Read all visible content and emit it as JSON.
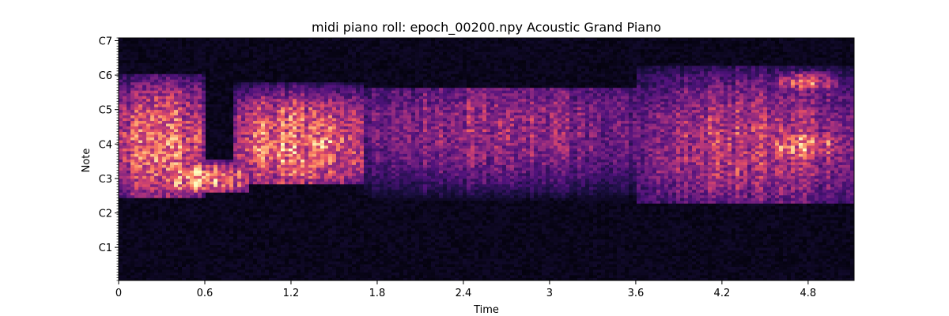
{
  "chart_data": {
    "type": "heatmap",
    "title": "midi piano roll: epoch_00200.npy Acoustic Grand Piano",
    "xlabel": "Time",
    "ylabel": "Note",
    "xlim": [
      0,
      5.12
    ],
    "ylim": [
      0,
      88
    ],
    "colormap": "magma",
    "x_ticks": [
      {
        "value": 0,
        "label": "0"
      },
      {
        "value": 0.6,
        "label": "0.6"
      },
      {
        "value": 1.2,
        "label": "1.2"
      },
      {
        "value": 1.8,
        "label": "1.8"
      },
      {
        "value": 2.4,
        "label": "2.4"
      },
      {
        "value": 3.0,
        "label": "3"
      },
      {
        "value": 3.6,
        "label": "3.6"
      },
      {
        "value": 4.2,
        "label": "4.2"
      },
      {
        "value": 4.8,
        "label": "4.8"
      }
    ],
    "y_ticks": [
      {
        "value": 12,
        "label": "C1"
      },
      {
        "value": 24.5,
        "label": "C2"
      },
      {
        "value": 37,
        "label": "C3"
      },
      {
        "value": 49.5,
        "label": "C4"
      },
      {
        "value": 62,
        "label": "C5"
      },
      {
        "value": 74.5,
        "label": "C6"
      },
      {
        "value": 87,
        "label": "C7"
      }
    ],
    "minor_y_ticks_per_note": true,
    "intensity_bands": [
      {
        "t_start": 0.0,
        "t_end": 0.6,
        "note_low": 30,
        "note_high": 75,
        "peak_note": 50,
        "level": 0.85
      },
      {
        "t_start": 0.3,
        "t_end": 0.9,
        "note_low": 32,
        "note_high": 44,
        "peak_note": 37,
        "level": 1.0
      },
      {
        "t_start": 0.8,
        "t_end": 1.7,
        "note_low": 35,
        "note_high": 72,
        "peak_note": 50,
        "level": 0.9
      },
      {
        "t_start": 1.2,
        "t_end": 1.6,
        "note_low": 46,
        "note_high": 56,
        "peak_note": 50,
        "level": 1.0
      },
      {
        "t_start": 1.7,
        "t_end": 3.6,
        "note_low": 28,
        "note_high": 70,
        "peak_note": 55,
        "level": 0.55
      },
      {
        "t_start": 3.6,
        "t_end": 5.12,
        "note_low": 28,
        "note_high": 78,
        "peak_note": 50,
        "level": 0.65
      },
      {
        "t_start": 4.5,
        "t_end": 5.0,
        "note_low": 44,
        "note_high": 56,
        "peak_note": 49,
        "level": 0.9
      },
      {
        "t_start": 4.6,
        "t_end": 5.0,
        "note_low": 68,
        "note_high": 76,
        "peak_note": 72,
        "level": 0.75
      }
    ]
  }
}
